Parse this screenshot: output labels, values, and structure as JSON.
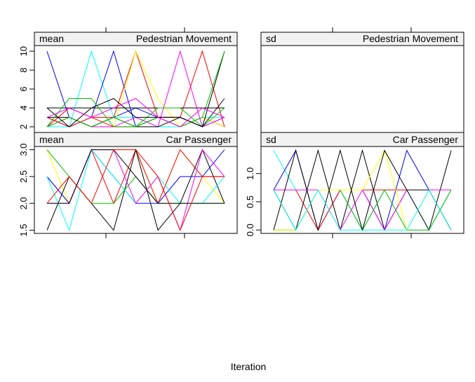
{
  "xlabel": "Iteration",
  "chart_data": [
    {
      "type": "line",
      "stat_label": "mean",
      "strip_title": "Pedestrian  Movement",
      "yticks": [
        "2",
        "4",
        "6",
        "8",
        "10"
      ],
      "ylim": [
        1.4,
        10.6
      ],
      "x": [
        1,
        2,
        3,
        4,
        5,
        6,
        7,
        8,
        9
      ],
      "grid": false,
      "series": [
        {
          "color": "#0000ff",
          "values": [
            10,
            3,
            2,
            3,
            4,
            3,
            3,
            2,
            3
          ]
        },
        {
          "color": "#00ffff",
          "values": [
            2,
            2,
            10,
            3,
            3,
            2,
            2,
            3,
            3
          ]
        },
        {
          "color": "#0000ff",
          "values": [
            3,
            2,
            3,
            10,
            2,
            3,
            2,
            3,
            2
          ]
        },
        {
          "color": "#ff0000",
          "values": [
            2,
            4,
            3,
            3,
            10,
            3,
            2,
            3,
            2
          ]
        },
        {
          "color": "#ffff00",
          "values": [
            2,
            3,
            2,
            2,
            10,
            5,
            2,
            3,
            2
          ]
        },
        {
          "color": "#ff00ff",
          "values": [
            2,
            3,
            2,
            2,
            3,
            2,
            10,
            2,
            3
          ]
        },
        {
          "color": "#ff0000",
          "values": [
            3,
            2,
            3,
            2,
            2,
            3,
            3,
            10,
            2
          ]
        },
        {
          "color": "#000000",
          "values": [
            3,
            3,
            2,
            3,
            2,
            2,
            3,
            2,
            10
          ]
        },
        {
          "color": "#00c000",
          "values": [
            2,
            3,
            2,
            3,
            2,
            3,
            2,
            3,
            10
          ]
        },
        {
          "color": "#000000",
          "values": [
            4,
            4,
            4,
            4,
            4,
            4,
            4,
            4,
            4
          ]
        },
        {
          "color": "#00c000",
          "values": [
            2,
            5,
            5,
            2,
            2,
            4,
            4,
            2,
            4
          ]
        },
        {
          "color": "#000000",
          "values": [
            4,
            2,
            4,
            5,
            3,
            3,
            3,
            2,
            5
          ]
        },
        {
          "color": "#ff00ff",
          "values": [
            3,
            4,
            3,
            4,
            5,
            3,
            2,
            4,
            3
          ]
        }
      ]
    },
    {
      "type": "line",
      "stat_label": "sd",
      "strip_title": "Pedestrian  Movement",
      "yticks": [],
      "x": [
        1,
        2,
        3,
        4,
        5,
        6,
        7,
        8,
        9
      ],
      "grid": false,
      "series": []
    },
    {
      "type": "line",
      "stat_label": "mean",
      "strip_title": "Car  Passenger",
      "yticks": [
        "1.5",
        "2.0",
        "2.5",
        "3.0"
      ],
      "ylim": [
        1.44,
        3.06
      ],
      "x": [
        1,
        2,
        3,
        4,
        5,
        6,
        7,
        8,
        9
      ],
      "grid": false,
      "series": [
        {
          "color": "#ffff00",
          "values": [
            3,
            2,
            3,
            3,
            3,
            2,
            3,
            2.5,
            2
          ]
        },
        {
          "color": "#ff0000",
          "values": [
            2.5,
            2,
            3,
            2,
            3,
            2,
            3,
            2.5,
            2.5
          ]
        },
        {
          "color": "#000000",
          "values": [
            1.5,
            2.5,
            2,
            1.5,
            3,
            1.5,
            2,
            3,
            2
          ]
        },
        {
          "color": "#0000ff",
          "values": [
            2.5,
            2,
            3,
            2.5,
            2,
            2,
            2.5,
            2.5,
            3
          ]
        },
        {
          "color": "#00ffff",
          "values": [
            2.5,
            1.5,
            3,
            2.5,
            2,
            2.5,
            2,
            2,
            2.5
          ]
        },
        {
          "color": "#00c000",
          "values": [
            3,
            2.5,
            2,
            2,
            2.5,
            2,
            2,
            2,
            2
          ]
        },
        {
          "color": "#ff00ff",
          "values": [
            2,
            2,
            3,
            3,
            2,
            2.5,
            1.5,
            3,
            2.5
          ]
        },
        {
          "color": "#000000",
          "values": [
            2,
            2,
            3,
            3,
            2.5,
            2,
            2,
            2,
            2
          ]
        },
        {
          "color": "#ff0000",
          "values": [
            2,
            2.5,
            2,
            3,
            3,
            2.5,
            1.5,
            2.5,
            2.5
          ]
        }
      ]
    },
    {
      "type": "line",
      "stat_label": "sd",
      "strip_title": "Car  Passenger",
      "yticks": [
        "0.0",
        "0.5",
        "1.0"
      ],
      "ylim": [
        -0.06,
        1.48
      ],
      "x": [
        1,
        2,
        3,
        4,
        5,
        6,
        7,
        8,
        9
      ],
      "grid": false,
      "series": [
        {
          "color": "#00ffff",
          "values": [
            1.41,
            0.71,
            0.71,
            0.71,
            0,
            0.71,
            0.71,
            0,
            0.71
          ]
        },
        {
          "color": "#0000ff",
          "values": [
            0.71,
            1.41,
            0,
            0.71,
            0.71,
            0,
            1.41,
            0.71,
            0.71
          ]
        },
        {
          "color": "#ff0000",
          "values": [
            0.71,
            0.71,
            0,
            0.71,
            0.71,
            0.71,
            0.71,
            0.71,
            0
          ]
        },
        {
          "color": "#000000",
          "values": [
            0.71,
            0,
            1.41,
            0,
            1.41,
            0,
            0.71,
            0,
            1.41
          ]
        },
        {
          "color": "#ff00ff",
          "values": [
            0.71,
            0.71,
            0.71,
            0,
            0.71,
            0,
            0.71,
            0.71,
            0.71
          ]
        },
        {
          "color": "#00c000",
          "values": [
            0,
            0,
            0.71,
            0.71,
            0,
            0.71,
            0,
            0,
            0.71
          ]
        },
        {
          "color": "#ffff00",
          "values": [
            0,
            0,
            0.71,
            0.71,
            0.71,
            1.41,
            0,
            0.71,
            0
          ]
        },
        {
          "color": "#000000",
          "values": [
            0,
            1.41,
            0,
            1.41,
            0,
            1.41,
            0.71,
            0.71,
            0
          ]
        },
        {
          "color": "#00ffff",
          "values": [
            0.71,
            0,
            0.71,
            0,
            0,
            0,
            0,
            0.71,
            0
          ]
        }
      ]
    }
  ]
}
